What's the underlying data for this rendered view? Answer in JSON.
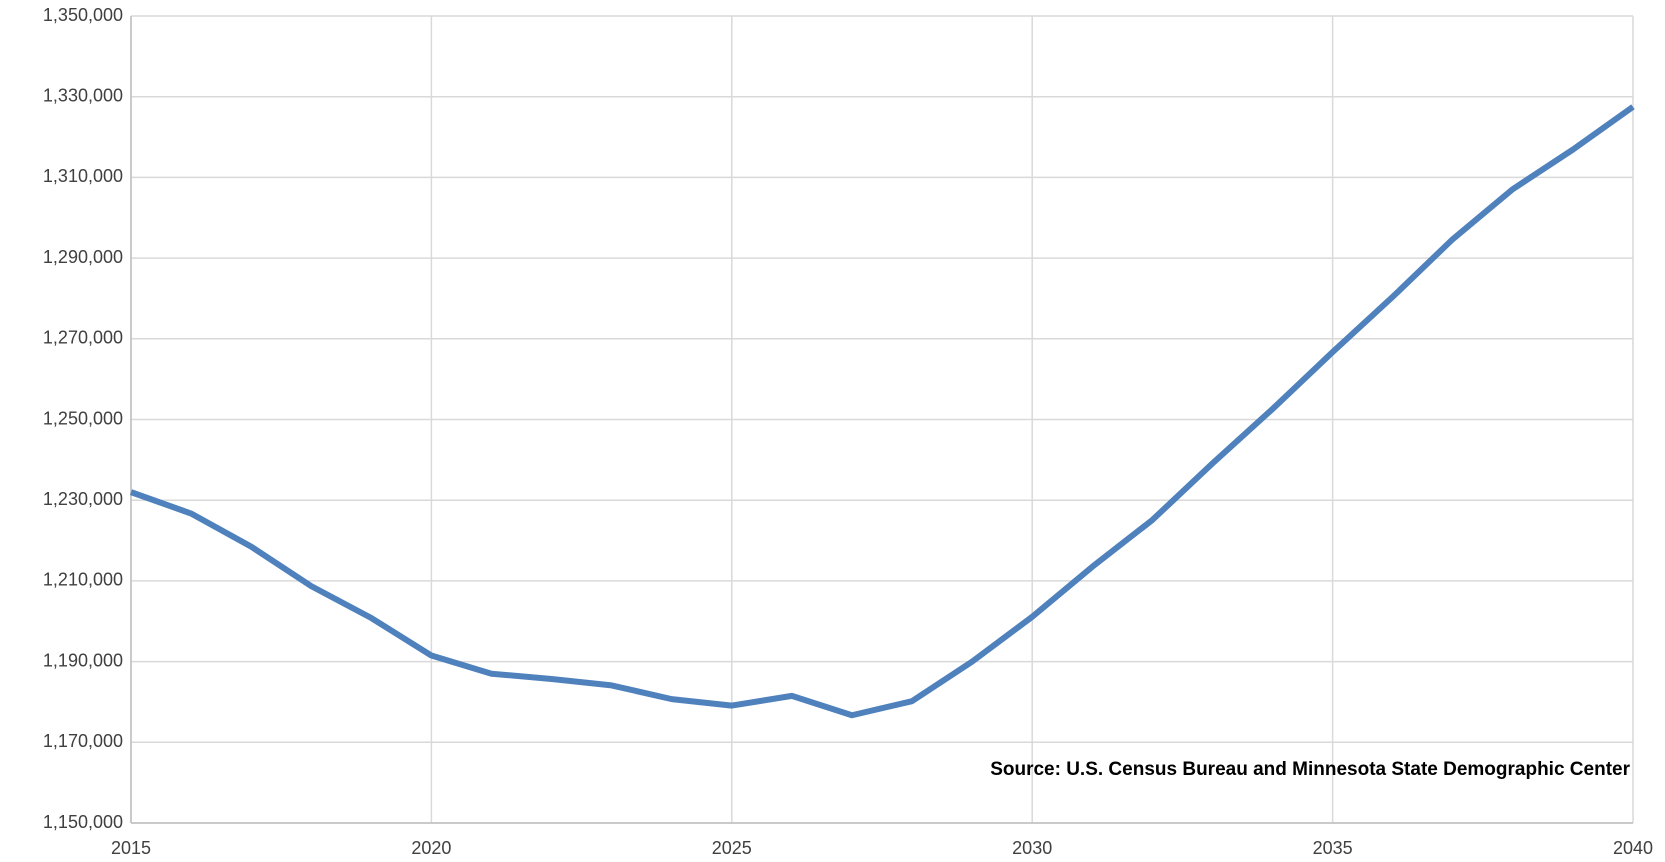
{
  "chart_data": {
    "type": "line",
    "x": [
      2015,
      2016,
      2017,
      2018,
      2019,
      2020,
      2021,
      2022,
      2023,
      2024,
      2025,
      2026,
      2027,
      2028,
      2029,
      2030,
      2031,
      2032,
      2033,
      2034,
      2035,
      2036,
      2037,
      2038,
      2039,
      2040
    ],
    "series": [
      {
        "color": "#4f81bd",
        "values": [
          1232000,
          1226700,
          1218500,
          1208700,
          1200800,
          1191500,
          1187000,
          1185700,
          1184100,
          1180700,
          1179100,
          1181500,
          1176700,
          1180200,
          1190000,
          1201100,
          1213500,
          1225100,
          1239100,
          1252600,
          1266700,
          1280400,
          1294700,
          1307100,
          1316900,
          1327500
        ]
      }
    ],
    "xlim": [
      2015,
      2040
    ],
    "xticks": [
      2015,
      2020,
      2025,
      2030,
      2035,
      2040
    ],
    "ylim": [
      1150000,
      1350000
    ],
    "yticks": [
      {
        "value": 1150000,
        "label": "1,150,000"
      },
      {
        "value": 1170000,
        "label": "1,170,000"
      },
      {
        "value": 1190000,
        "label": "1,190,000"
      },
      {
        "value": 1210000,
        "label": "1,210,000"
      },
      {
        "value": 1230000,
        "label": "1,230,000"
      },
      {
        "value": 1250000,
        "label": "1,250,000"
      },
      {
        "value": 1270000,
        "label": "1,270,000"
      },
      {
        "value": 1290000,
        "label": "1,290,000"
      },
      {
        "value": 1310000,
        "label": "1,310,000"
      },
      {
        "value": 1330000,
        "label": "1,330,000"
      },
      {
        "value": 1350000,
        "label": "1,350,000"
      }
    ],
    "grid": true,
    "annotation": "Source: U.S. Census Bureau and Minnesota State Demographic Center"
  }
}
